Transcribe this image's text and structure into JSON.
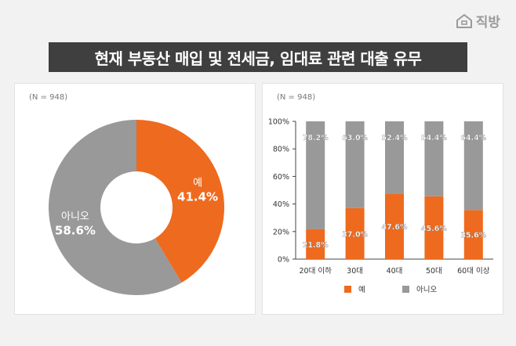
{
  "brand": {
    "name": "직방",
    "icon": "house-logo-icon"
  },
  "title": "현재 부동산 매입 및 전세금, 임대료 관련 대출 유무",
  "colors": {
    "yes": "#ee6a1e",
    "no": "#999999",
    "title_bg": "#3f3f3f"
  },
  "chart_data": [
    {
      "type": "pie",
      "style": "donut",
      "note": "(N = 948)",
      "slices": [
        {
          "label": "예",
          "value": 41.4,
          "display": "41.4%",
          "color": "#ee6a1e"
        },
        {
          "label": "아니오",
          "value": 58.6,
          "display": "58.6%",
          "color": "#999999"
        }
      ]
    },
    {
      "type": "bar",
      "stacked": true,
      "note": "(N = 948)",
      "categories": [
        "20대 이하",
        "30대",
        "40대",
        "50대",
        "60대 이상"
      ],
      "series": [
        {
          "name": "예",
          "color": "#ee6a1e",
          "values": [
            21.8,
            37.0,
            47.6,
            45.6,
            35.6
          ],
          "labels": [
            "21.8%",
            "37.0%",
            "47.6%",
            "45.6%",
            "35.6%"
          ]
        },
        {
          "name": "아니오",
          "color": "#999999",
          "values": [
            78.2,
            63.0,
            52.4,
            54.4,
            64.4
          ],
          "labels": [
            "78.2%",
            "63.0%",
            "52.4%",
            "54.4%",
            "64.4%"
          ]
        }
      ],
      "ylim": [
        0,
        100
      ],
      "yticks": [
        "0%",
        "20%",
        "40%",
        "60%",
        "80%",
        "100%"
      ],
      "legend": "bottom"
    }
  ]
}
